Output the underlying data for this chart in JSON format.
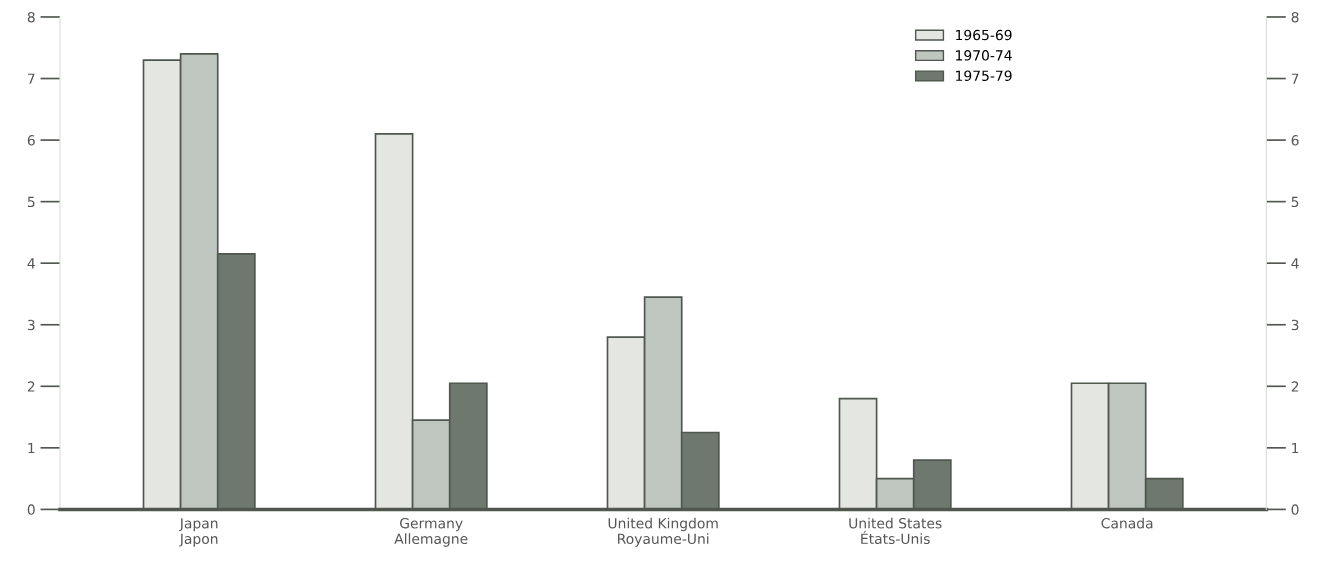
{
  "chart_data": {
    "type": "bar",
    "categories": [
      "Japan\nJapon",
      "Germany\nAllemagne",
      "United Kingdom\nRoyaume-Uni",
      "United States\nÉtats-Unis",
      "Canada"
    ],
    "series": [
      {
        "name": "1965-69",
        "color": "#e4e6e2",
        "values": [
          7.3,
          6.1,
          2.8,
          1.8,
          2.05
        ]
      },
      {
        "name": "1970-74",
        "color": "#bfc5bf",
        "values": [
          7.4,
          1.45,
          3.45,
          0.5,
          2.05
        ]
      },
      {
        "name": "1975-79",
        "color": "#6e786f",
        "values": [
          4.15,
          2.05,
          1.25,
          0.8,
          0.5
        ]
      }
    ],
    "ylim": [
      0,
      8
    ],
    "yticks": [
      0,
      1,
      2,
      3,
      4,
      5,
      6,
      7,
      8
    ],
    "y2lim": [
      0,
      8
    ],
    "y2ticks": [
      0,
      1,
      2,
      3,
      4,
      5,
      6,
      7,
      8
    ],
    "legend": "top right"
  }
}
